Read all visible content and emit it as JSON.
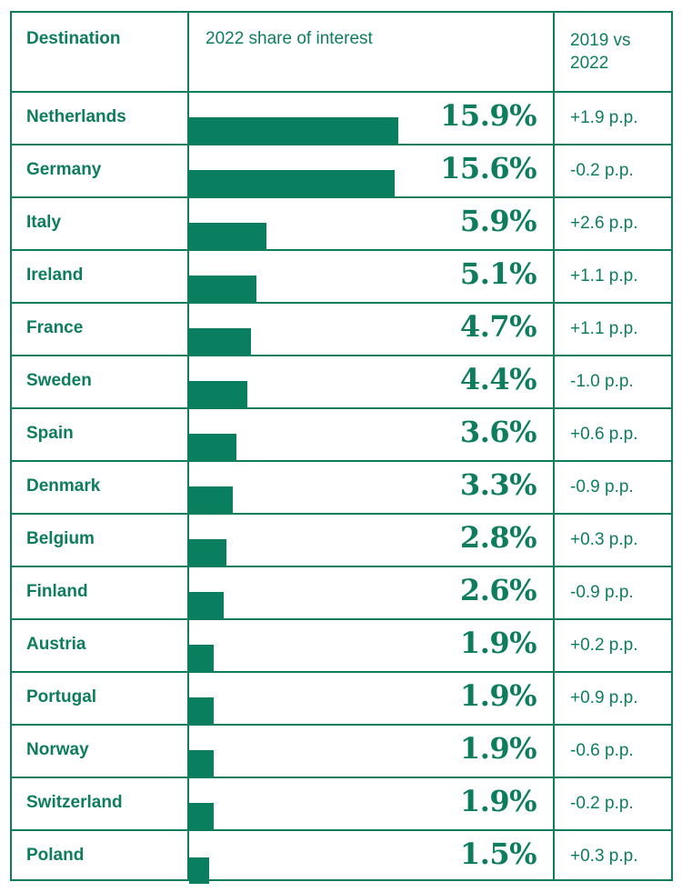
{
  "chart_data": {
    "type": "table",
    "columns": [
      "Destination",
      "2022 share of interest",
      "2019 vs 2022"
    ],
    "unit": "%",
    "rows": [
      {
        "destination": "Netherlands",
        "share": 15.9,
        "share_label": "15.9%",
        "change": "+1.9 p.p."
      },
      {
        "destination": "Germany",
        "share": 15.6,
        "share_label": "15.6%",
        "change": "-0.2 p.p."
      },
      {
        "destination": "Italy",
        "share": 5.9,
        "share_label": "5.9%",
        "change": "+2.6 p.p."
      },
      {
        "destination": "Ireland",
        "share": 5.1,
        "share_label": "5.1%",
        "change": "+1.1 p.p."
      },
      {
        "destination": "France",
        "share": 4.7,
        "share_label": "4.7%",
        "change": "+1.1 p.p."
      },
      {
        "destination": "Sweden",
        "share": 4.4,
        "share_label": "4.4%",
        "change": "-1.0 p.p."
      },
      {
        "destination": "Spain",
        "share": 3.6,
        "share_label": "3.6%",
        "change": "+0.6 p.p."
      },
      {
        "destination": "Denmark",
        "share": 3.3,
        "share_label": "3.3%",
        "change": "-0.9 p.p."
      },
      {
        "destination": "Belgium",
        "share": 2.8,
        "share_label": "2.8%",
        "change": "+0.3 p.p."
      },
      {
        "destination": "Finland",
        "share": 2.6,
        "share_label": "2.6%",
        "change": "-0.9 p.p."
      },
      {
        "destination": "Austria",
        "share": 1.9,
        "share_label": "1.9%",
        "change": "+0.2 p.p."
      },
      {
        "destination": "Portugal",
        "share": 1.9,
        "share_label": "1.9%",
        "change": "+0.9 p.p."
      },
      {
        "destination": "Norway",
        "share": 1.9,
        "share_label": "1.9%",
        "change": "-0.6 p.p."
      },
      {
        "destination": "Switzerland",
        "share": 1.9,
        "share_label": "1.9%",
        "change": "-0.2 p.p."
      },
      {
        "destination": "Poland",
        "share": 1.5,
        "share_label": "1.5%",
        "change": "+0.3 p.p."
      }
    ],
    "bar_max": 15.9
  },
  "colors": {
    "accent": "#0e7d5d",
    "bar": "#0a7f60",
    "background": "#ffffff"
  }
}
